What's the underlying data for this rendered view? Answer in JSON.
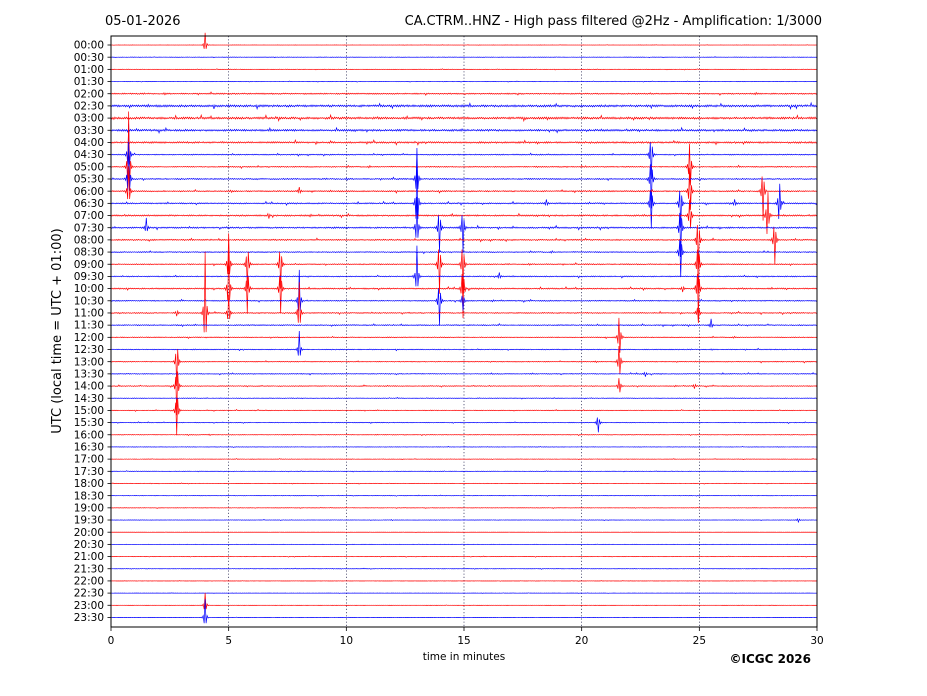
{
  "header": {
    "date": "05-01-2026",
    "title": "CA.CTRM..HNZ - High pass filtered @2Hz - Amplification: 1/3000"
  },
  "copyright": "©ICGC 2026",
  "chart_data": {
    "type": "line",
    "subtype": "helicorder",
    "xlabel": "time in minutes",
    "ylabel": "UTC (local time = UTC + 01:00)",
    "xlim": [
      0,
      30
    ],
    "x_ticks": [
      0,
      5,
      10,
      15,
      20,
      25,
      30
    ],
    "grid": "vertical dotted lines at 5-minute intervals",
    "trace_colors": [
      "#ff0000",
      "#0000ff"
    ],
    "rows": [
      "00:00",
      "00:30",
      "01:00",
      "01:30",
      "02:00",
      "02:30",
      "03:00",
      "03:30",
      "04:00",
      "04:30",
      "05:00",
      "05:30",
      "06:00",
      "06:30",
      "07:00",
      "07:30",
      "08:00",
      "08:30",
      "09:00",
      "09:30",
      "10:00",
      "10:30",
      "11:00",
      "11:30",
      "12:00",
      "12:30",
      "13:00",
      "13:30",
      "14:00",
      "14:30",
      "15:00",
      "15:30",
      "16:00",
      "16:30",
      "17:00",
      "17:30",
      "18:00",
      "18:30",
      "19:00",
      "19:30",
      "20:00",
      "20:30",
      "21:00",
      "21:30",
      "22:00",
      "22:30",
      "23:00",
      "23:30"
    ],
    "noise_levels": [
      0.1,
      0.2,
      0.2,
      0.2,
      0.6,
      1.0,
      1.0,
      0.9,
      0.8,
      0.5,
      0.5,
      0.6,
      0.6,
      0.6,
      0.7,
      0.7,
      0.6,
      0.5,
      0.5,
      0.5,
      0.6,
      0.5,
      0.5,
      0.5,
      0.4,
      0.4,
      0.4,
      0.4,
      0.4,
      0.3,
      0.3,
      0.3,
      0.3,
      0.2,
      0.2,
      0.2,
      0.2,
      0.2,
      0.2,
      0.2,
      0.1,
      0.1,
      0.2,
      0.2,
      0.1,
      0.1,
      0.1,
      0.1
    ],
    "events": [
      {
        "row": 0,
        "x": 4.0,
        "amp": 2.0
      },
      {
        "row": 22,
        "x": 4.0,
        "amp": 10.0
      },
      {
        "row": 46,
        "x": 4.0,
        "amp": 2.0
      },
      {
        "row": 47,
        "x": 4.0,
        "amp": 3.0
      },
      {
        "row": 9,
        "x": 0.75,
        "amp": 5.0
      },
      {
        "row": 10,
        "x": 0.75,
        "amp": 9.0
      },
      {
        "row": 11,
        "x": 0.75,
        "amp": 6.0
      },
      {
        "row": 12,
        "x": 0.75,
        "amp": 4.0
      },
      {
        "row": 15,
        "x": 1.5,
        "amp": 1.5
      },
      {
        "row": 12,
        "x": 8.0,
        "amp": 0.6
      },
      {
        "row": 14,
        "x": 6.7,
        "amp": 0.5
      },
      {
        "row": 18,
        "x": 5.0,
        "amp": 5.0
      },
      {
        "row": 20,
        "x": 5.0,
        "amp": 6.0
      },
      {
        "row": 22,
        "x": 5.0,
        "amp": 3.0
      },
      {
        "row": 18,
        "x": 5.8,
        "amp": 5.0
      },
      {
        "row": 20,
        "x": 5.8,
        "amp": 5.0
      },
      {
        "row": 18,
        "x": 7.2,
        "amp": 5.0
      },
      {
        "row": 20,
        "x": 7.2,
        "amp": 5.0
      },
      {
        "row": 21,
        "x": 8.0,
        "amp": 5.0
      },
      {
        "row": 22,
        "x": 8.0,
        "amp": 5.0
      },
      {
        "row": 25,
        "x": 8.0,
        "amp": 3.0
      },
      {
        "row": 22,
        "x": 2.8,
        "amp": 0.6
      },
      {
        "row": 26,
        "x": 2.8,
        "amp": 5.0
      },
      {
        "row": 28,
        "x": 2.8,
        "amp": 6.0
      },
      {
        "row": 30,
        "x": 2.8,
        "amp": 5.0
      },
      {
        "row": 11,
        "x": 13.0,
        "amp": 5.0
      },
      {
        "row": 13,
        "x": 13.0,
        "amp": 8.0
      },
      {
        "row": 15,
        "x": 13.0,
        "amp": 5.0
      },
      {
        "row": 19,
        "x": 13.0,
        "amp": 5.0
      },
      {
        "row": 15,
        "x": 13.95,
        "amp": 5.0
      },
      {
        "row": 18,
        "x": 13.95,
        "amp": 6.0
      },
      {
        "row": 21,
        "x": 13.95,
        "amp": 5.0
      },
      {
        "row": 15,
        "x": 14.95,
        "amp": 5.0
      },
      {
        "row": 18,
        "x": 14.95,
        "amp": 6.0
      },
      {
        "row": 20,
        "x": 14.95,
        "amp": 6.0
      },
      {
        "row": 21,
        "x": 14.95,
        "amp": 2.0
      },
      {
        "row": 19,
        "x": 16.5,
        "amp": 0.6
      },
      {
        "row": 13,
        "x": 18.5,
        "amp": 0.6
      },
      {
        "row": 24,
        "x": 21.6,
        "amp": 5.0
      },
      {
        "row": 26,
        "x": 21.6,
        "amp": 4.0
      },
      {
        "row": 28,
        "x": 21.6,
        "amp": 2.0
      },
      {
        "row": 27,
        "x": 22.7,
        "amp": 0.5
      },
      {
        "row": 31,
        "x": 20.7,
        "amp": 2.0
      },
      {
        "row": 9,
        "x": 22.95,
        "amp": 5.0
      },
      {
        "row": 11,
        "x": 22.95,
        "amp": 6.0
      },
      {
        "row": 13,
        "x": 22.95,
        "amp": 5.0
      },
      {
        "row": 13,
        "x": 24.2,
        "amp": 5.0
      },
      {
        "row": 15,
        "x": 24.2,
        "amp": 6.0
      },
      {
        "row": 17,
        "x": 24.2,
        "amp": 5.0
      },
      {
        "row": 10,
        "x": 24.6,
        "amp": 6.0
      },
      {
        "row": 12,
        "x": 24.6,
        "amp": 6.0
      },
      {
        "row": 14,
        "x": 24.6,
        "amp": 4.0
      },
      {
        "row": 16,
        "x": 24.95,
        "amp": 6.0
      },
      {
        "row": 18,
        "x": 24.95,
        "amp": 6.0
      },
      {
        "row": 20,
        "x": 24.95,
        "amp": 6.0
      },
      {
        "row": 22,
        "x": 24.95,
        "amp": 2.0
      },
      {
        "row": 20,
        "x": 24.3,
        "amp": 0.6
      },
      {
        "row": 23,
        "x": 25.5,
        "amp": 1.0
      },
      {
        "row": 13,
        "x": 26.5,
        "amp": 0.6
      },
      {
        "row": 12,
        "x": 27.7,
        "amp": 6.0
      },
      {
        "row": 14,
        "x": 27.9,
        "amp": 6.0
      },
      {
        "row": 16,
        "x": 28.2,
        "amp": 5.0
      },
      {
        "row": 13,
        "x": 28.4,
        "amp": 5.0
      },
      {
        "row": 28,
        "x": 24.8,
        "amp": 0.5
      },
      {
        "row": 39,
        "x": 29.2,
        "amp": 0.4
      }
    ]
  }
}
